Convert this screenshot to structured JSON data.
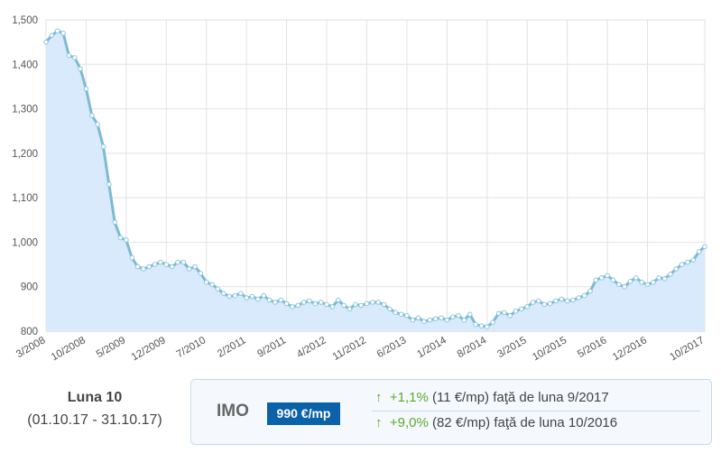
{
  "chart_data": {
    "type": "area",
    "categories": [
      "3/2008",
      null,
      null,
      null,
      null,
      null,
      null,
      "10/2008",
      null,
      null,
      null,
      null,
      null,
      null,
      "5/2009",
      null,
      null,
      null,
      null,
      null,
      null,
      "12/2009",
      null,
      null,
      null,
      null,
      null,
      null,
      "7/2010",
      null,
      null,
      null,
      null,
      null,
      null,
      "2/2011",
      null,
      null,
      null,
      null,
      null,
      null,
      "9/2011",
      null,
      null,
      null,
      null,
      null,
      null,
      "4/2012",
      null,
      null,
      null,
      null,
      null,
      null,
      "11/2012",
      null,
      null,
      null,
      null,
      null,
      null,
      "6/2013",
      null,
      null,
      null,
      null,
      null,
      null,
      "1/2014",
      null,
      null,
      null,
      null,
      null,
      null,
      "8/2014",
      null,
      null,
      null,
      null,
      null,
      null,
      "3/2015",
      null,
      null,
      null,
      null,
      null,
      null,
      "10/2015",
      null,
      null,
      null,
      null,
      null,
      null,
      "5/2016",
      null,
      null,
      null,
      null,
      null,
      null,
      "12/2016",
      null,
      null,
      null,
      null,
      null,
      null,
      null,
      null,
      null,
      "10/2017"
    ],
    "values": [
      1450,
      1465,
      1475,
      1470,
      1420,
      1415,
      1390,
      1345,
      1285,
      1265,
      1215,
      1130,
      1045,
      1010,
      1005,
      965,
      945,
      940,
      945,
      950,
      955,
      950,
      945,
      955,
      955,
      940,
      945,
      930,
      910,
      905,
      895,
      885,
      878,
      880,
      885,
      875,
      878,
      872,
      880,
      870,
      865,
      870,
      862,
      855,
      858,
      865,
      868,
      862,
      865,
      860,
      855,
      870,
      858,
      850,
      860,
      858,
      862,
      865,
      865,
      860,
      850,
      842,
      838,
      835,
      825,
      830,
      822,
      825,
      828,
      830,
      825,
      832,
      835,
      825,
      838,
      815,
      812,
      810,
      820,
      840,
      842,
      835,
      845,
      850,
      855,
      865,
      868,
      860,
      862,
      868,
      872,
      868,
      870,
      875,
      880,
      890,
      915,
      920,
      925,
      915,
      905,
      900,
      912,
      920,
      910,
      905,
      910,
      920,
      918,
      928,
      940,
      950,
      955,
      960,
      979,
      990
    ],
    "color": "#7dbad3",
    "fill": "#d8eafb",
    "ylim": [
      800,
      1500
    ],
    "yticks": [
      800,
      900,
      {
        "value": 1000,
        "label": "1,000"
      },
      {
        "value": 1100,
        "label": "1,100"
      },
      {
        "value": 1200,
        "label": "1,200"
      },
      {
        "value": 1300,
        "label": "1,300"
      },
      {
        "value": 1400,
        "label": "1,400"
      },
      {
        "value": 1500,
        "label": "1,500"
      }
    ],
    "grid": true
  },
  "summary": {
    "period_title": "Luna 10",
    "period_range": "(01.10.17 - 31.10.17)",
    "index_name": "IMO",
    "index_value": "990 €/mp",
    "changes": [
      {
        "percent": "+1,1%",
        "text": "(11 €/mp) faţă de luna 9/2017"
      },
      {
        "percent": "+9,0%",
        "text": "(82 €/mp) faţă de luna 10/2016"
      }
    ]
  }
}
